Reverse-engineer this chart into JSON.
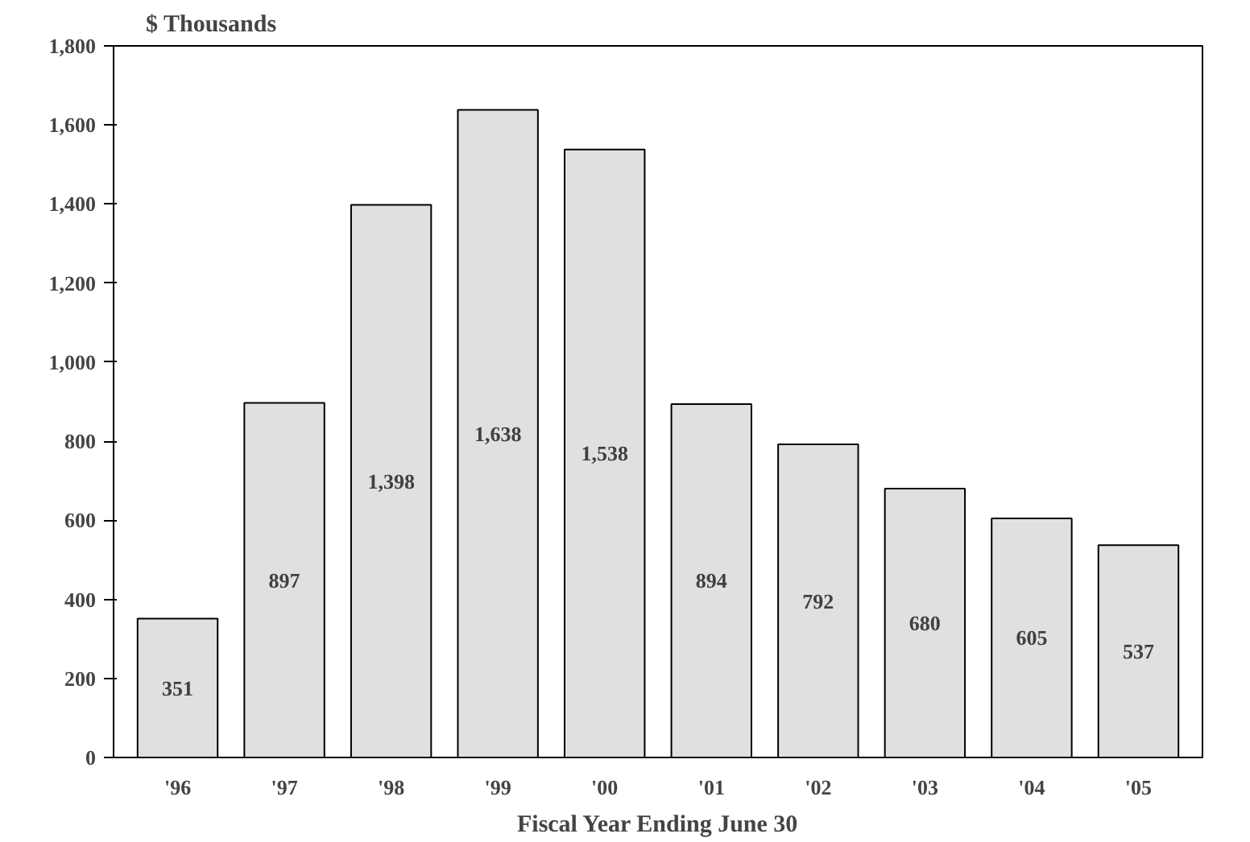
{
  "chart_data": {
    "type": "bar",
    "ylabel": "$ Thousands",
    "xlabel": "Fiscal Year Ending June 30",
    "categories": [
      "'96",
      "'97",
      "'98",
      "'99",
      "'00",
      "'01",
      "'02",
      "'03",
      "'04",
      "'05"
    ],
    "values": [
      351,
      897,
      1398,
      1638,
      1538,
      894,
      792,
      680,
      605,
      537
    ],
    "value_labels": [
      "351",
      "897",
      "1,398",
      "1,638",
      "1,538",
      "894",
      "792",
      "680",
      "605",
      "537"
    ],
    "color": "#e0e0e0",
    "ylim": [
      0,
      1800
    ],
    "yticks": [
      0,
      200,
      400,
      600,
      800,
      {
        "value": 1000,
        "label": "1,000"
      },
      {
        "value": 1200,
        "label": "1,200"
      },
      {
        "value": 1400,
        "label": "1,400"
      },
      {
        "value": 1600,
        "label": "1,600"
      },
      {
        "value": 1800,
        "label": "1,800"
      }
    ],
    "grid": false
  }
}
